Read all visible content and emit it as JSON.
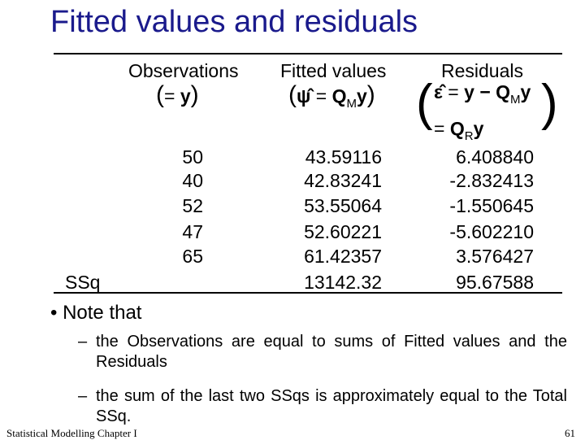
{
  "slide": {
    "title": "Fitted values and residuals",
    "columns": [
      {
        "heading": "Observations",
        "formula": "y"
      },
      {
        "heading": "Fitted values",
        "formula_lhs": "ψ̂",
        "formula_rhs_Q": "Q",
        "formula_sub": "M",
        "formula_var": "y"
      },
      {
        "heading": "Residuals",
        "formula_lhs": "ε̂",
        "formula_rhs": "y − Q",
        "formula_sub": "M",
        "formula_var": "y",
        "formula2_Q": "Q",
        "formula2_sub": "R",
        "formula2_var": "y"
      }
    ],
    "rows": [
      {
        "observation": "50",
        "fitted": "43.59116",
        "residual": "6.408840"
      },
      {
        "observation": "40",
        "fitted": "42.83241",
        "residual": "-2.832413"
      },
      {
        "observation": "52",
        "fitted": "53.55064",
        "residual": "-1.550645"
      },
      {
        "observation": "47",
        "fitted": "52.60221",
        "residual": "-5.602210"
      },
      {
        "observation": "65",
        "fitted": "61.42357",
        "residual": "3.576427"
      }
    ],
    "ssq": {
      "label": "SSq",
      "fitted": "13142.32",
      "residual": "95.67588"
    },
    "bullet": "Note that",
    "sub_bullets": [
      "the Observations are equal to sums of Fitted values and the Residuals",
      "the sum of the last two SSqs is approximately equal to the Total SSq."
    ],
    "footer_left": "Statistical Modelling   Chapter I",
    "footer_right": "61"
  },
  "colors": {
    "title": "#1a1a8c",
    "text": "#000000",
    "background": "#ffffff"
  }
}
